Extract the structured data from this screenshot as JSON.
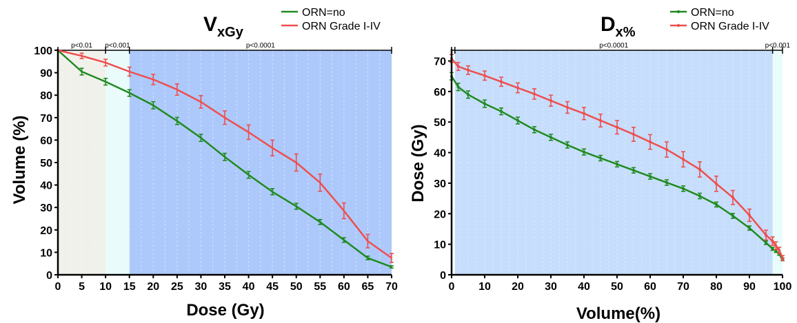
{
  "chart_data": [
    {
      "type": "line",
      "title_main": "V",
      "title_sub": "xGy",
      "xlabel": "Dose (Gy)",
      "ylabel": "Volume (%)",
      "xlim": [
        0,
        70
      ],
      "ylim": [
        0,
        100
      ],
      "x_ticks": [
        0,
        5,
        10,
        15,
        20,
        25,
        30,
        35,
        40,
        45,
        50,
        55,
        60,
        65,
        70
      ],
      "y_ticks": [
        0,
        10,
        20,
        30,
        40,
        50,
        60,
        70,
        80,
        90,
        100
      ],
      "legend_position": "top-right",
      "grid": true,
      "regions": [
        {
          "from": 0,
          "to": 10,
          "color": "#f1f1ec",
          "label": "p<0.01"
        },
        {
          "from": 10,
          "to": 15,
          "color": "#e9fcfb",
          "label": "p<0.001"
        },
        {
          "from": 15,
          "to": 70,
          "color": "#adc9fb",
          "label": "p<0.0001"
        }
      ],
      "series": [
        {
          "name": "ORN=no",
          "color": "#1f8a1f",
          "marker": "",
          "x": [
            0,
            5,
            10,
            15,
            20,
            25,
            30,
            35,
            40,
            45,
            50,
            55,
            60,
            65,
            70
          ],
          "y": [
            100,
            90.5,
            86,
            81,
            75.5,
            68.5,
            61,
            52.5,
            44.5,
            37,
            30.5,
            23.5,
            15.5,
            7.5,
            3.5
          ],
          "err": [
            0,
            1.5,
            1.5,
            1.5,
            1.6,
            1.6,
            1.6,
            1.6,
            1.5,
            1.4,
            1.3,
            1.1,
            1,
            0.8,
            0.5
          ]
        },
        {
          "name": "ORN Grade I-IV",
          "color": "#ee4e4e",
          "marker": "",
          "x": [
            0,
            5,
            10,
            15,
            20,
            25,
            30,
            35,
            40,
            45,
            50,
            55,
            60,
            65,
            70
          ],
          "y": [
            100,
            97.5,
            94.5,
            90.5,
            87,
            82.5,
            77,
            70,
            63.5,
            56.5,
            50,
            41,
            28.5,
            15,
            7.5
          ],
          "err": [
            0,
            1.2,
            1.5,
            2,
            2.3,
            2.5,
            2.8,
            3,
            3.2,
            3.5,
            3.8,
            3.8,
            3.5,
            3,
            2
          ]
        }
      ]
    },
    {
      "type": "line",
      "title_main": "D",
      "title_sub": "x%",
      "xlabel": "Volume(%)",
      "ylabel": "Dose (Gy)",
      "xlim": [
        0,
        100
      ],
      "ylim": [
        0,
        73.5
      ],
      "x_ticks": [
        0,
        10,
        20,
        30,
        40,
        50,
        60,
        70,
        80,
        90,
        100
      ],
      "y_ticks": [
        0,
        10,
        20,
        30,
        40,
        50,
        60,
        70
      ],
      "legend_position": "top-right",
      "grid": true,
      "regions": [
        {
          "from": 1,
          "to": 97,
          "color": "#c6ddfc",
          "label": "p<0.0001"
        },
        {
          "from": 97,
          "to": 100,
          "color": "#e9fcfb",
          "label": "p<0.001"
        }
      ],
      "series": [
        {
          "name": "ORN=no",
          "color": "#1f8a1f",
          "marker": "dot",
          "x": [
            0,
            2,
            5,
            10,
            15,
            20,
            25,
            30,
            35,
            40,
            45,
            50,
            55,
            60,
            65,
            70,
            75,
            80,
            85,
            90,
            95,
            97,
            98,
            99,
            100
          ],
          "y": [
            65,
            61.5,
            59,
            56,
            53.5,
            50.5,
            47.5,
            45,
            42.5,
            40.2,
            38.2,
            36.2,
            34.2,
            32.2,
            30.2,
            28.2,
            25.8,
            23,
            19.3,
            15.3,
            10.5,
            8.5,
            7.8,
            6.8,
            5
          ],
          "err": [
            1.2,
            1.2,
            1.2,
            1.2,
            1.1,
            1.1,
            1,
            1,
            1,
            1,
            0.9,
            0.9,
            0.9,
            0.9,
            0.9,
            0.9,
            0.9,
            0.8,
            0.8,
            0.7,
            0.6,
            0.5,
            0.5,
            0.4,
            0.4
          ]
        },
        {
          "name": "ORN Grade I-IV",
          "color": "#ee4e4e",
          "marker": "dot",
          "x": [
            0,
            2,
            5,
            10,
            15,
            20,
            25,
            30,
            35,
            40,
            45,
            50,
            55,
            60,
            65,
            70,
            75,
            80,
            85,
            90,
            95,
            97,
            98,
            99,
            100
          ],
          "y": [
            70.8,
            68.2,
            67,
            65.2,
            63.2,
            61.2,
            59.2,
            57,
            54.8,
            52.8,
            50.5,
            48.3,
            46,
            43.5,
            41,
            37.8,
            34.5,
            29.8,
            25.3,
            19.5,
            13,
            11,
            9.5,
            8,
            5.5
          ],
          "err": [
            1.3,
            1.3,
            1.4,
            1.5,
            1.5,
            1.6,
            1.7,
            1.8,
            1.9,
            2,
            2.1,
            2.2,
            2.3,
            2.4,
            2.5,
            2.5,
            2.5,
            2.5,
            2.3,
            2,
            1.6,
            1.4,
            1.3,
            1,
            0.8
          ]
        }
      ]
    }
  ]
}
